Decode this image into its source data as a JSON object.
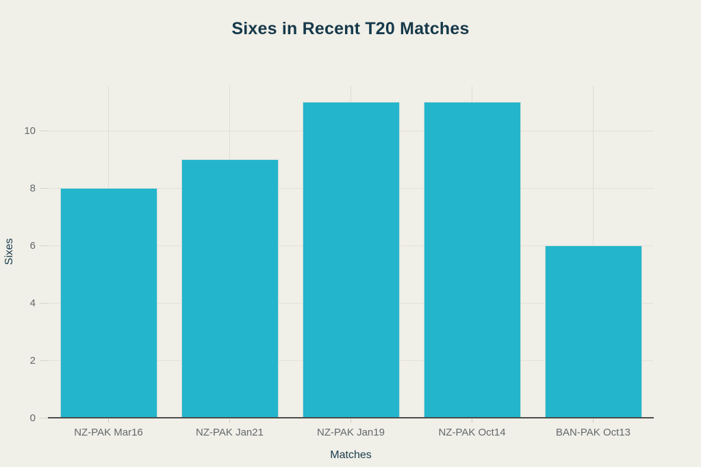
{
  "page": {
    "background": "#F0EFE8"
  },
  "chart_data": {
    "type": "bar",
    "title": "Sixes in Recent T20 Matches",
    "xlabel": "Matches",
    "ylabel": "Sixes",
    "categories": [
      "NZ-PAK Mar16",
      "NZ-PAK Jan21",
      "NZ-PAK Jan19",
      "NZ-PAK Oct14",
      "BAN-PAK Oct13"
    ],
    "values": [
      8,
      9,
      11,
      11,
      6
    ],
    "yticks": [
      0,
      2,
      4,
      6,
      8,
      10
    ],
    "ylim": [
      0,
      11.55
    ],
    "grid": true,
    "legend": "none",
    "colors": {
      "bar": "#23B5CB",
      "background": "#F0EFE8",
      "hgrid": "#E3E1D9",
      "vgrid": "#DEDCD4",
      "axis_line": "#4A4A4A",
      "tick_label": "#63686B",
      "title": "#16394A"
    }
  }
}
